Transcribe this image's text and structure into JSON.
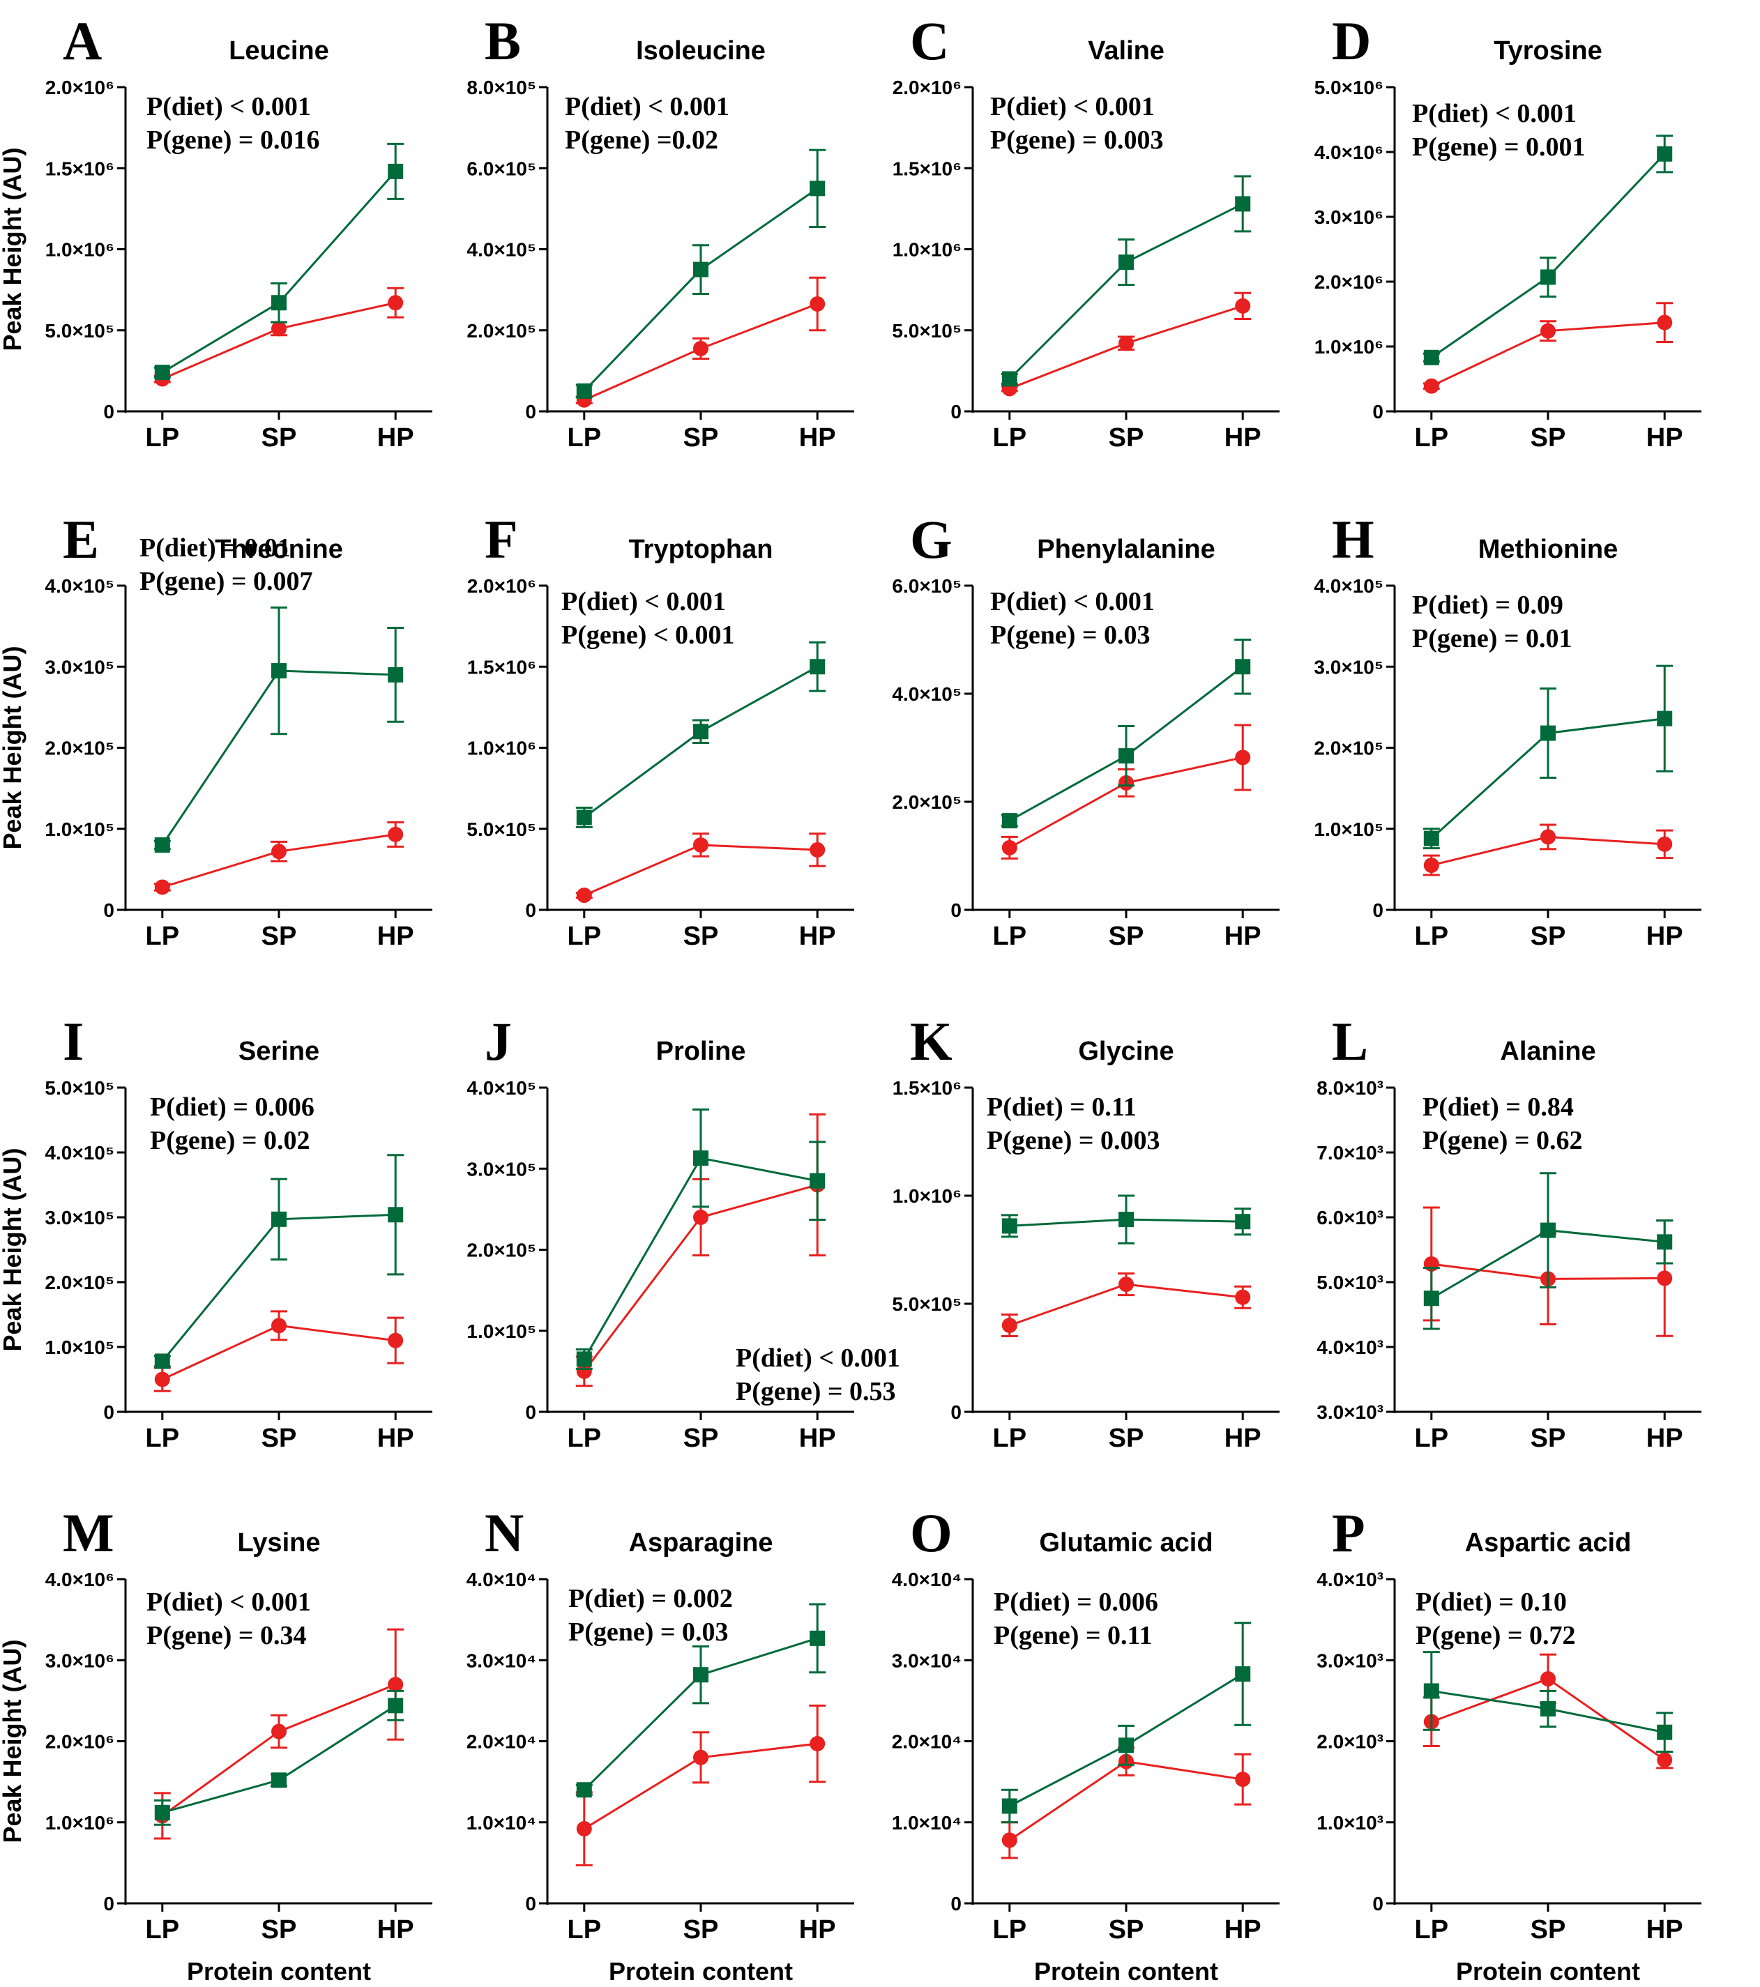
{
  "colors": {
    "green": "#006a3a",
    "red": "#e8201f",
    "axis": "#000000"
  },
  "legend_markers": {
    "green": "square",
    "red": "circle"
  },
  "common": {
    "categories": [
      "LP",
      "SP",
      "HP"
    ],
    "ylabel": "Peak Height (AU)",
    "xlabel": "Protein content"
  },
  "chart_data": [
    {
      "letter": "A",
      "title": "Leucine",
      "type": "line",
      "ylim": [
        0,
        2000000
      ],
      "ticks": [
        "0",
        "5.0×10⁵",
        "1.0×10⁶",
        "1.5×10⁶",
        "2.0×10⁶"
      ],
      "series": [
        {
          "name": "green",
          "values": [
            240000,
            670000,
            1480000
          ],
          "errors": [
            30000,
            120000,
            170000
          ]
        },
        {
          "name": "red",
          "values": [
            200000,
            510000,
            670000
          ],
          "errors": [
            20000,
            40000,
            90000
          ]
        }
      ],
      "stats": [
        "P(diet) < 0.001",
        "P(gene) = 0.016"
      ]
    },
    {
      "letter": "B",
      "title": "Isoleucine",
      "type": "line",
      "ylim": [
        0,
        800000
      ],
      "ticks": [
        "0",
        "2.0×10⁵",
        "4.0×10⁵",
        "6.0×10⁵",
        "8.0×10⁵"
      ],
      "series": [
        {
          "name": "green",
          "values": [
            50000,
            350000,
            550000
          ],
          "errors": [
            15000,
            60000,
            95000
          ]
        },
        {
          "name": "red",
          "values": [
            28000,
            155000,
            265000
          ],
          "errors": [
            8000,
            25000,
            65000
          ]
        }
      ],
      "stats": [
        "P(diet) < 0.001",
        "P(gene) =0.02"
      ]
    },
    {
      "letter": "C",
      "title": "Valine",
      "type": "line",
      "ylim": [
        0,
        2000000
      ],
      "ticks": [
        "0",
        "5.0×10⁵",
        "1.0×10⁶",
        "1.5×10⁶",
        "2.0×10⁶"
      ],
      "series": [
        {
          "name": "green",
          "values": [
            200000,
            920000,
            1280000
          ],
          "errors": [
            30000,
            140000,
            170000
          ]
        },
        {
          "name": "red",
          "values": [
            140000,
            420000,
            650000
          ],
          "errors": [
            15000,
            40000,
            80000
          ]
        }
      ],
      "stats": [
        "P(diet) < 0.001",
        "P(gene) = 0.003"
      ]
    },
    {
      "letter": "D",
      "title": "Tyrosine",
      "type": "line",
      "ylim": [
        0,
        5000000
      ],
      "ticks": [
        "0",
        "1.0×10⁶",
        "2.0×10⁶",
        "3.0×10⁶",
        "4.0×10⁶",
        "5.0×10⁶"
      ],
      "series": [
        {
          "name": "green",
          "values": [
            830000,
            2070000,
            3970000
          ],
          "errors": [
            60000,
            300000,
            280000
          ]
        },
        {
          "name": "red",
          "values": [
            390000,
            1240000,
            1370000
          ],
          "errors": [
            40000,
            150000,
            300000
          ]
        }
      ],
      "stats": [
        "P(diet) < 0.001",
        "P(gene) = 0.001"
      ]
    },
    {
      "letter": "E",
      "title": "Threonine",
      "type": "line",
      "ylim": [
        0,
        400000
      ],
      "ticks": [
        "0",
        "1.0×10⁵",
        "2.0×10⁵",
        "3.0×10⁵",
        "4.0×10⁵"
      ],
      "series": [
        {
          "name": "green",
          "values": [
            80000,
            295000,
            290000
          ],
          "errors": [
            5000,
            78000,
            58000
          ]
        },
        {
          "name": "red",
          "values": [
            28000,
            72000,
            93000
          ],
          "errors": [
            4000,
            12000,
            15000
          ]
        }
      ],
      "stats": [
        "P(diet) = 0.01",
        "P(gene) = 0.007"
      ]
    },
    {
      "letter": "F",
      "title": "Tryptophan",
      "type": "line",
      "ylim": [
        0,
        2000000
      ],
      "ticks": [
        "0",
        "5.0×10⁵",
        "1.0×10⁶",
        "1.5×10⁶",
        "2.0×10⁶"
      ],
      "series": [
        {
          "name": "green",
          "values": [
            570000,
            1100000,
            1500000
          ],
          "errors": [
            60000,
            70000,
            150000
          ]
        },
        {
          "name": "red",
          "values": [
            90000,
            400000,
            370000
          ],
          "errors": [
            15000,
            70000,
            100000
          ]
        }
      ],
      "stats": [
        "P(diet) < 0.001",
        "P(gene) < 0.001"
      ]
    },
    {
      "letter": "G",
      "title": "Phenylalanine",
      "type": "line",
      "ylim": [
        0,
        600000
      ],
      "ticks": [
        "0",
        "2.0×10⁵",
        "4.0×10⁵",
        "6.0×10⁵"
      ],
      "series": [
        {
          "name": "green",
          "values": [
            165000,
            285000,
            450000
          ],
          "errors": [
            10000,
            55000,
            50000
          ]
        },
        {
          "name": "red",
          "values": [
            115000,
            235000,
            282000
          ],
          "errors": [
            20000,
            25000,
            60000
          ]
        }
      ],
      "stats": [
        "P(diet) < 0.001",
        "P(gene) = 0.03"
      ]
    },
    {
      "letter": "H",
      "title": "Methionine",
      "type": "line",
      "ylim": [
        0,
        400000
      ],
      "ticks": [
        "0",
        "1.0×10⁵",
        "2.0×10⁵",
        "3.0×10⁵",
        "4.0×10⁵"
      ],
      "series": [
        {
          "name": "green",
          "values": [
            88000,
            218000,
            236000
          ],
          "errors": [
            12000,
            55000,
            65000
          ]
        },
        {
          "name": "red",
          "values": [
            55000,
            90000,
            81000
          ],
          "errors": [
            12000,
            15000,
            17000
          ]
        }
      ],
      "stats": [
        "P(diet) = 0.09",
        "P(gene) = 0.01"
      ]
    },
    {
      "letter": "I",
      "title": "Serine",
      "type": "line",
      "ylim": [
        0,
        500000
      ],
      "ticks": [
        "0",
        "1.0×10⁵",
        "2.0×10⁵",
        "3.0×10⁵",
        "4.0×10⁵",
        "5.0×10⁵"
      ],
      "series": [
        {
          "name": "green",
          "values": [
            78000,
            297000,
            304000
          ],
          "errors": [
            8000,
            62000,
            92000
          ]
        },
        {
          "name": "red",
          "values": [
            50000,
            133000,
            110000
          ],
          "errors": [
            18000,
            22000,
            35000
          ]
        }
      ],
      "stats": [
        "P(diet) = 0.006",
        "P(gene) = 0.02"
      ]
    },
    {
      "letter": "J",
      "title": "Proline",
      "type": "line",
      "ylim": [
        0,
        400000
      ],
      "ticks": [
        "0",
        "1.0×10⁵",
        "2.0×10⁵",
        "3.0×10⁵",
        "4.0×10⁵"
      ],
      "series": [
        {
          "name": "green",
          "values": [
            65000,
            313000,
            285000
          ],
          "errors": [
            12000,
            60000,
            48000
          ]
        },
        {
          "name": "red",
          "values": [
            50000,
            240000,
            280000
          ],
          "errors": [
            18000,
            47000,
            87000
          ]
        }
      ],
      "stats": [
        "P(diet) < 0.001",
        "P(gene) = 0.53"
      ]
    },
    {
      "letter": "K",
      "title": "Glycine",
      "type": "line",
      "ylim": [
        0,
        1500000
      ],
      "ticks": [
        "0",
        "5.0×10⁵",
        "1.0×10⁶",
        "1.5×10⁶"
      ],
      "series": [
        {
          "name": "green",
          "values": [
            860000,
            890000,
            880000
          ],
          "errors": [
            50000,
            110000,
            60000
          ]
        },
        {
          "name": "red",
          "values": [
            400000,
            590000,
            530000
          ],
          "errors": [
            50000,
            50000,
            50000
          ]
        }
      ],
      "stats": [
        "P(diet) = 0.11",
        "P(gene) = 0.003"
      ]
    },
    {
      "letter": "L",
      "title": "Alanine",
      "type": "line",
      "ylim": [
        3000,
        8000
      ],
      "ticks": [
        "3.0×10³",
        "4.0×10³",
        "5.0×10³",
        "6.0×10³",
        "7.0×10³",
        "8.0×10³"
      ],
      "series": [
        {
          "name": "green",
          "values": [
            4750,
            5800,
            5620
          ],
          "errors": [
            470,
            880,
            330
          ]
        },
        {
          "name": "red",
          "values": [
            5280,
            5050,
            5060
          ],
          "errors": [
            870,
            700,
            890
          ]
        }
      ],
      "stats": [
        "P(diet) = 0.84",
        "P(gene) = 0.62"
      ]
    },
    {
      "letter": "M",
      "title": "Lysine",
      "type": "line",
      "ylim": [
        0,
        4000000
      ],
      "ticks": [
        "0",
        "1.0×10⁶",
        "2.0×10⁶",
        "3.0×10⁶",
        "4.0×10⁶"
      ],
      "series": [
        {
          "name": "green",
          "values": [
            1120000,
            1520000,
            2440000
          ],
          "errors": [
            150000,
            70000,
            180000
          ]
        },
        {
          "name": "red",
          "values": [
            1080000,
            2120000,
            2700000
          ],
          "errors": [
            280000,
            200000,
            680000
          ]
        }
      ],
      "stats": [
        "P(diet) < 0.001",
        "P(gene) = 0.34"
      ]
    },
    {
      "letter": "N",
      "title": "Asparagine",
      "type": "line",
      "ylim": [
        0,
        40000
      ],
      "ticks": [
        "0",
        "1.0×10⁴",
        "2.0×10⁴",
        "3.0×10⁴",
        "4.0×10⁴"
      ],
      "series": [
        {
          "name": "green",
          "values": [
            14000,
            28200,
            32700
          ],
          "errors": [
            600,
            3500,
            4200
          ]
        },
        {
          "name": "red",
          "values": [
            9200,
            18000,
            19700
          ],
          "errors": [
            4500,
            3100,
            4700
          ]
        }
      ],
      "stats": [
        "P(diet) = 0.002",
        "P(gene) = 0.03"
      ]
    },
    {
      "letter": "O",
      "title": "Glutamic acid",
      "type": "line",
      "ylim": [
        0,
        40000
      ],
      "ticks": [
        "0",
        "1.0×10⁴",
        "2.0×10⁴",
        "3.0×10⁴",
        "4.0×10⁴"
      ],
      "series": [
        {
          "name": "green",
          "values": [
            12000,
            19500,
            28300
          ],
          "errors": [
            2000,
            2400,
            6300
          ]
        },
        {
          "name": "red",
          "values": [
            7800,
            17500,
            15300
          ],
          "errors": [
            2200,
            1700,
            3100
          ]
        }
      ],
      "stats": [
        "P(diet) = 0.006",
        "P(gene) = 0.11"
      ]
    },
    {
      "letter": "P",
      "title": "Aspartic acid",
      "type": "line",
      "ylim": [
        0,
        4000
      ],
      "ticks": [
        "0",
        "1.0×10³",
        "2.0×10³",
        "3.0×10³",
        "4.0×10³"
      ],
      "series": [
        {
          "name": "green",
          "values": [
            2620,
            2400,
            2110
          ],
          "errors": [
            480,
            220,
            240
          ]
        },
        {
          "name": "red",
          "values": [
            2240,
            2770,
            1770
          ],
          "errors": [
            300,
            300,
            100
          ]
        }
      ],
      "stats": [
        "P(diet) = 0.10",
        "P(gene) = 0.72"
      ]
    }
  ]
}
